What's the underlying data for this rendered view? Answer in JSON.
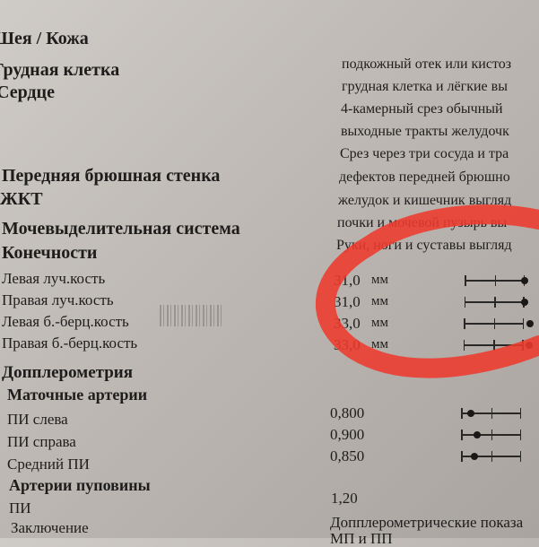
{
  "left_labels": {
    "neck_skin": "Шея / Кожа",
    "chest": "Грудная клетка",
    "heart": "Сердце",
    "abdominal_wall": "Передняя брюшная стенка",
    "gi": "ЖКТ",
    "urinary": "Мочевыделительная система",
    "limbs": "Конечности",
    "left_radius": "Левая луч.кость",
    "right_radius": "Правая луч.кость",
    "left_tibia": "Левая б.-берц.кость",
    "right_tibia": "Правая б.-берц.кость",
    "doppler": "Допплерометрия",
    "uterine_arteries": "Маточные артерии",
    "pi_left": "ПИ слева",
    "pi_right": "ПИ справа",
    "pi_mean": "Средний ПИ",
    "umbilical_arteries": "Артерии пуповины",
    "pi": "ПИ",
    "conclusion": "Заключение"
  },
  "right_text": [
    "подкожный отек или кистоз",
    "грудная клетка и лёгкие вы",
    "4-камерный срез обычный",
    "выходные тракты желудочк",
    "Срез через три сосуда и тра",
    "дефектов передней брюшно",
    "желудок и кишечник выгляд",
    "почки и мочевой пузырь вы",
    "Руки, ноги и суставы выгляд"
  ],
  "bones": [
    {
      "value": "31,0",
      "unit": "мм",
      "marker": 1.0
    },
    {
      "value": "31,0",
      "unit": "мм",
      "marker": 1.0
    },
    {
      "value": "33,0",
      "unit": "мм",
      "marker": 1.1
    },
    {
      "value": "33,0",
      "unit": "мм",
      "marker": 1.1
    }
  ],
  "doppler_values": [
    {
      "value": "0,800",
      "marker": 0.17
    },
    {
      "value": "0,900",
      "marker": 0.27
    },
    {
      "value": "0,850",
      "marker": 0.22
    }
  ],
  "umbilical_pi": "1,20",
  "conclusion_text": "Допплерометрические показа",
  "conclusion_text2": "МП и ПП",
  "annotation_color": "#ee3a2e"
}
